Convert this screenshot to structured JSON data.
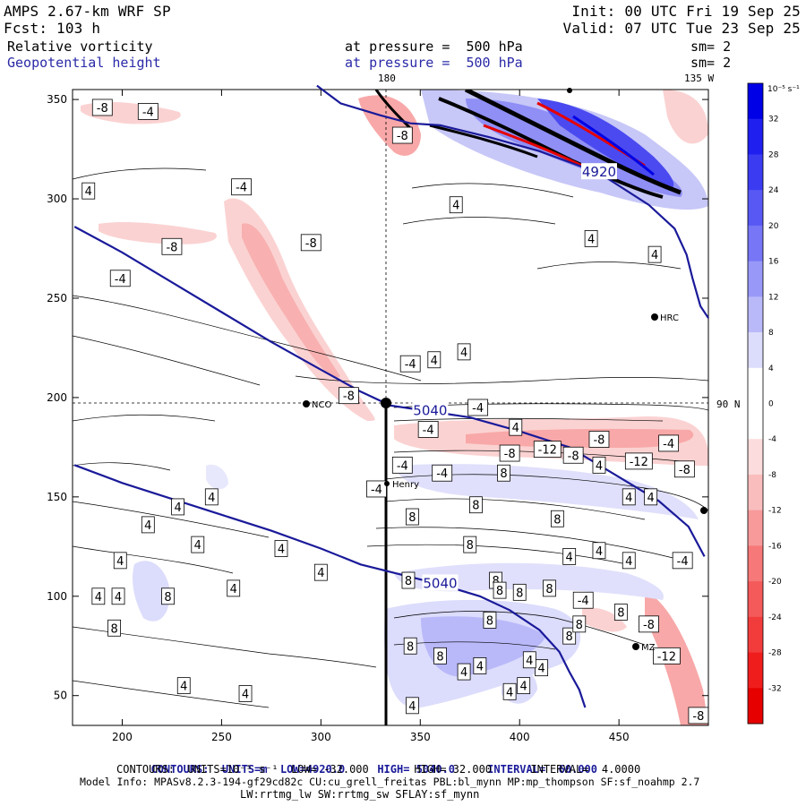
{
  "header": {
    "model": "AMPS 2.67-km WRF SP",
    "forecast": "Fcst: 103 h",
    "init": "Init: 00 UTC Fri 19 Sep 25",
    "valid": "Valid: 07 UTC Tue 23 Sep 25",
    "field1_name": "Relative vorticity",
    "field1_level": "at pressure =  500 hPa",
    "field1_sm": "sm= 2",
    "field2_name": "Geopotential height",
    "field2_level": "at pressure =  500 hPa",
    "field2_sm": "sm= 2"
  },
  "map_labels": {
    "lon_180": "180",
    "lon_135w": "135 W",
    "lat_90n": "90 N",
    "stations": [
      "HRC",
      "NCO",
      "Henry",
      "MZ"
    ]
  },
  "footer": {
    "height_contours": {
      "prefix": "CONTOURS:  UNITS=m  LOW=",
      "low": "4920.0",
      "high_label": "HIGH=",
      "high": "5040.0",
      "interval_label": "INTERVAL=",
      "interval": "60.000"
    },
    "vort_contours": "CONTOURS:  UNITS=10⁻⁵ s⁻¹  LOW= -32.000       HIGH= 32.000      INTERVAL=  4.0000",
    "model_info": "Model Info: MPASv8.2.3-194-gf29cd82c CU:cu_grell_freitas PBL:bl_mynn MP:mp_thompson SF:sf_noahmp 2.7",
    "physics": "LW:rrtmg_lw SW:rrtmg_sw SFLAY:sf_mynn"
  },
  "colorbar": {
    "units": "10⁻⁵ s⁻¹",
    "ticks": [
      32,
      28,
      24,
      20,
      16,
      12,
      8,
      4,
      0,
      -4,
      -8,
      -12,
      -16,
      -20,
      -24,
      -28,
      -32
    ],
    "colors": [
      "#0000e6",
      "#1f1ff0",
      "#3b3bf2",
      "#5858f4",
      "#7676f6",
      "#9898f8",
      "#b9b9fa",
      "#dcdcfc",
      "#ffffff",
      "#ffffff",
      "#fcdcdc",
      "#fabdbd",
      "#f89a9a",
      "#f67878",
      "#f45a5a",
      "#f23c3c",
      "#f01d1d",
      "#e60000"
    ]
  },
  "chart_data": {
    "type": "heatmap",
    "title": "Relative vorticity and Geopotential height at 500 hPa",
    "xlim": [
      175,
      495
    ],
    "ylim": [
      35,
      355
    ],
    "xticks": [
      200,
      250,
      300,
      350,
      400,
      450
    ],
    "yticks": [
      50,
      100,
      150,
      200,
      250,
      300,
      350
    ],
    "crosshair": {
      "x": 335,
      "y": 196
    },
    "height_contours": [
      {
        "label": "4920",
        "points": [
          [
            298,
            357
          ],
          [
            310,
            348
          ],
          [
            330,
            342
          ],
          [
            345,
            338
          ],
          [
            360,
            337
          ],
          [
            385,
            331
          ],
          [
            410,
            324
          ],
          [
            440,
            313
          ],
          [
            465,
            297
          ],
          [
            478,
            285
          ],
          [
            484,
            272
          ],
          [
            487,
            260
          ],
          [
            491,
            246
          ],
          [
            495,
            240
          ]
        ]
      },
      {
        "label": "5040",
        "points": [
          [
            176,
            286
          ],
          [
            200,
            273
          ],
          [
            225,
            258
          ],
          [
            250,
            243
          ],
          [
            275,
            228
          ],
          [
            300,
            214
          ],
          [
            320,
            203
          ],
          [
            335,
            196
          ],
          [
            355,
            193
          ],
          [
            375,
            190
          ],
          [
            400,
            183
          ],
          [
            425,
            175
          ],
          [
            450,
            160
          ],
          [
            470,
            148
          ],
          [
            485,
            135
          ],
          [
            493,
            120
          ]
        ]
      },
      {
        "label": "5040",
        "points": [
          [
            176,
            166
          ],
          [
            200,
            157
          ],
          [
            225,
            149
          ],
          [
            250,
            141
          ],
          [
            275,
            133
          ],
          [
            300,
            124
          ],
          [
            320,
            116
          ],
          [
            340,
            111
          ],
          [
            360,
            106
          ],
          [
            380,
            100
          ],
          [
            395,
            93
          ],
          [
            410,
            83
          ],
          [
            420,
            72
          ],
          [
            425,
            62
          ],
          [
            430,
            53
          ],
          [
            433,
            44
          ]
        ]
      }
    ],
    "vorticity_label_points": [
      {
        "x": 190,
        "y": 346,
        "value": -8
      },
      {
        "x": 213,
        "y": 344,
        "value": -4
      },
      {
        "x": 183,
        "y": 304,
        "value": 4
      },
      {
        "x": 225,
        "y": 276,
        "value": -8
      },
      {
        "x": 199,
        "y": 260,
        "value": -4
      },
      {
        "x": 260,
        "y": 306,
        "value": -4
      },
      {
        "x": 295,
        "y": 278,
        "value": -8
      },
      {
        "x": 341,
        "y": 332,
        "value": -8
      },
      {
        "x": 368,
        "y": 297,
        "value": 4
      },
      {
        "x": 436,
        "y": 280,
        "value": 4
      },
      {
        "x": 468,
        "y": 272,
        "value": 4
      },
      {
        "x": 345,
        "y": 217,
        "value": -4
      },
      {
        "x": 357,
        "y": 219,
        "value": 4
      },
      {
        "x": 372,
        "y": 223,
        "value": 4
      },
      {
        "x": 314,
        "y": 201,
        "value": -8
      },
      {
        "x": 379,
        "y": 195,
        "value": -4
      },
      {
        "x": 354,
        "y": 184,
        "value": -4
      },
      {
        "x": 398,
        "y": 185,
        "value": 4
      },
      {
        "x": 440,
        "y": 179,
        "value": -8
      },
      {
        "x": 395,
        "y": 172,
        "value": -8
      },
      {
        "x": 414,
        "y": 174,
        "value": -12
      },
      {
        "x": 427,
        "y": 171,
        "value": -8
      },
      {
        "x": 460,
        "y": 168,
        "value": -12
      },
      {
        "x": 475,
        "y": 177,
        "value": -4
      },
      {
        "x": 483,
        "y": 164,
        "value": -8
      },
      {
        "x": 341,
        "y": 166,
        "value": -4
      },
      {
        "x": 361,
        "y": 162,
        "value": -4
      },
      {
        "x": 440,
        "y": 166,
        "value": 4
      },
      {
        "x": 392,
        "y": 162,
        "value": 8
      },
      {
        "x": 328,
        "y": 154,
        "value": -4
      },
      {
        "x": 228,
        "y": 145,
        "value": 4
      },
      {
        "x": 245,
        "y": 150,
        "value": 4
      },
      {
        "x": 213,
        "y": 136,
        "value": 4
      },
      {
        "x": 238,
        "y": 126,
        "value": 4
      },
      {
        "x": 280,
        "y": 124,
        "value": 4
      },
      {
        "x": 199,
        "y": 118,
        "value": 4
      },
      {
        "x": 300,
        "y": 112,
        "value": 4
      },
      {
        "x": 346,
        "y": 140,
        "value": 8
      },
      {
        "x": 378,
        "y": 146,
        "value": 8
      },
      {
        "x": 455,
        "y": 150,
        "value": 4
      },
      {
        "x": 466,
        "y": 150,
        "value": 4
      },
      {
        "x": 375,
        "y": 126,
        "value": 8
      },
      {
        "x": 419,
        "y": 139,
        "value": 8
      },
      {
        "x": 440,
        "y": 123,
        "value": 4
      },
      {
        "x": 455,
        "y": 118,
        "value": 4
      },
      {
        "x": 425,
        "y": 120,
        "value": 4
      },
      {
        "x": 344,
        "y": 108,
        "value": 8
      },
      {
        "x": 388,
        "y": 108,
        "value": 8
      },
      {
        "x": 400,
        "y": 102,
        "value": 8
      },
      {
        "x": 198,
        "y": 100,
        "value": 4
      },
      {
        "x": 223,
        "y": 100,
        "value": 8
      },
      {
        "x": 256,
        "y": 104,
        "value": 4
      },
      {
        "x": 390,
        "y": 103,
        "value": 8
      },
      {
        "x": 415,
        "y": 104,
        "value": 8
      },
      {
        "x": 432,
        "y": 98,
        "value": -4
      },
      {
        "x": 385,
        "y": 88,
        "value": 8
      },
      {
        "x": 451,
        "y": 92,
        "value": 8
      },
      {
        "x": 465,
        "y": 86,
        "value": -8
      },
      {
        "x": 482,
        "y": 118,
        "value": -4
      },
      {
        "x": 188,
        "y": 100,
        "value": 4
      },
      {
        "x": 196,
        "y": 84,
        "value": 8
      },
      {
        "x": 345,
        "y": 75,
        "value": 8
      },
      {
        "x": 425,
        "y": 80,
        "value": 8
      },
      {
        "x": 430,
        "y": 86,
        "value": 8
      },
      {
        "x": 474,
        "y": 70,
        "value": -12
      },
      {
        "x": 411,
        "y": 64,
        "value": 4
      },
      {
        "x": 380,
        "y": 65,
        "value": 4
      },
      {
        "x": 360,
        "y": 70,
        "value": 8
      },
      {
        "x": 231,
        "y": 55,
        "value": 4
      },
      {
        "x": 262,
        "y": 51,
        "value": 4
      },
      {
        "x": 346,
        "y": 45,
        "value": 4
      },
      {
        "x": 372,
        "y": 62,
        "value": 4
      },
      {
        "x": 395,
        "y": 52,
        "value": 4
      },
      {
        "x": 402,
        "y": 55,
        "value": 4
      },
      {
        "x": 405,
        "y": 68,
        "value": 4
      },
      {
        "x": 490,
        "y": 40,
        "value": -8
      }
    ]
  }
}
